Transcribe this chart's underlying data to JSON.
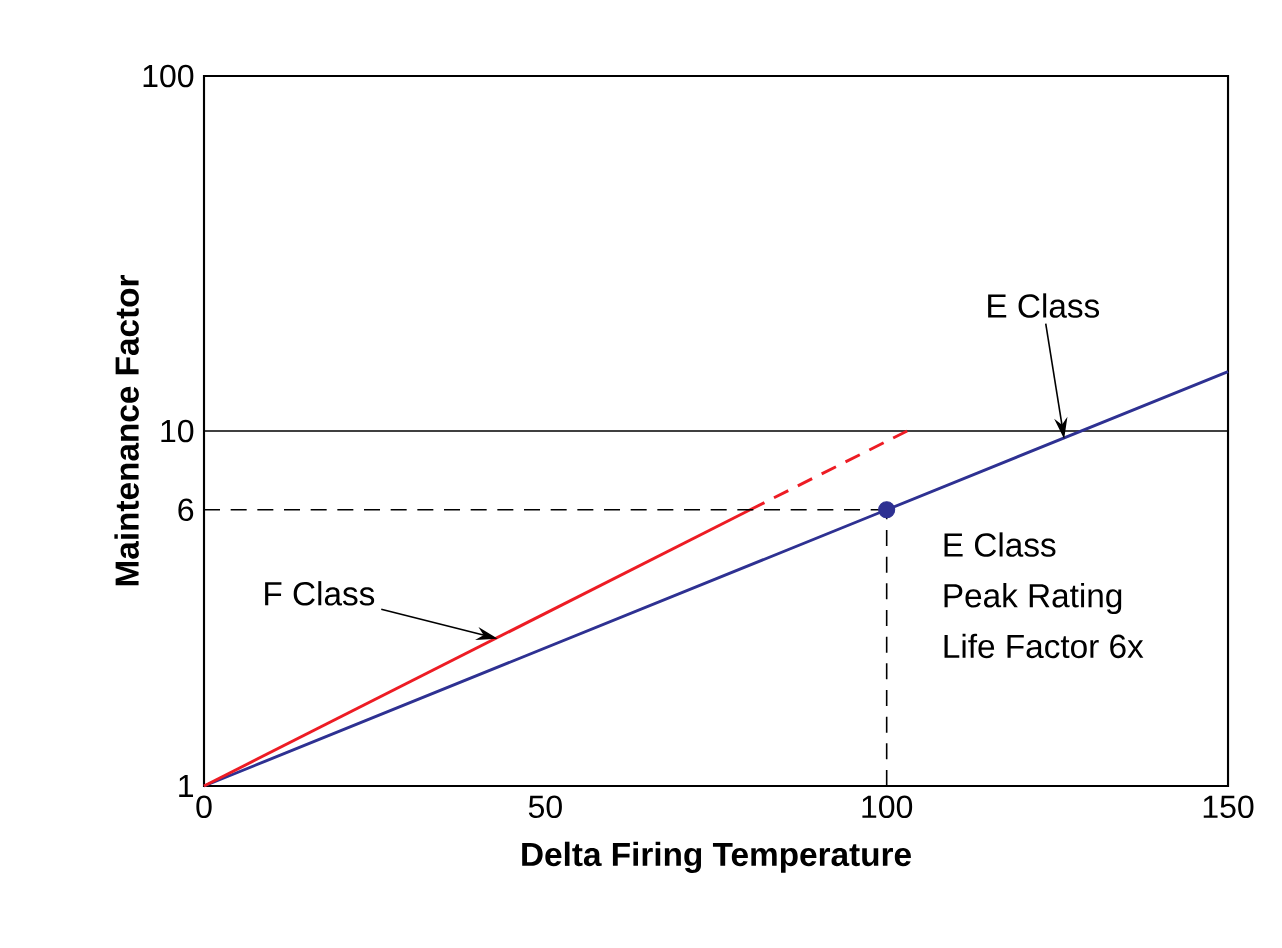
{
  "chart_data": {
    "type": "line",
    "xlabel": "Delta Firing Temperature",
    "ylabel": "Maintenance Factor",
    "xlim": [
      0,
      150
    ],
    "ylim": [
      1,
      100
    ],
    "xticks": [
      0,
      50,
      100,
      150
    ],
    "yticks": [
      1,
      6,
      10,
      100
    ],
    "log": "y",
    "grid": false,
    "series": [
      {
        "color": "#2e3192",
        "x": [
          0,
          100,
          150
        ],
        "values": [
          1,
          6,
          14.7
        ]
      },
      {
        "color": "#ed1c24",
        "x": [
          0,
          80
        ],
        "values": [
          1,
          6
        ]
      },
      {
        "color": "#ed1c24",
        "x": [
          80,
          103
        ],
        "values": [
          6,
          10
        ],
        "line_style": "dashed"
      },
      {
        "color": "#000000",
        "x": [
          0,
          100
        ],
        "values": [
          6,
          6
        ],
        "line_style": "dashed"
      },
      {
        "color": "#000000",
        "x": [
          100,
          100
        ],
        "values": [
          1,
          6
        ],
        "line_style": "dashed"
      },
      {
        "type": "scatter",
        "color": "#2e3192",
        "x": [
          100
        ],
        "values": [
          6
        ],
        "marker": "circle"
      }
    ],
    "ref_lines": [
      {
        "axis": "y",
        "value": 10,
        "color": "#000000"
      }
    ],
    "annotations": [
      {
        "text": "F Class",
        "x": 43,
        "y": 2.6
      },
      {
        "text": "E Class",
        "x": 126,
        "y": 9.5
      },
      "E Class",
      "Peak Rating",
      "Life Factor 6x"
    ]
  }
}
